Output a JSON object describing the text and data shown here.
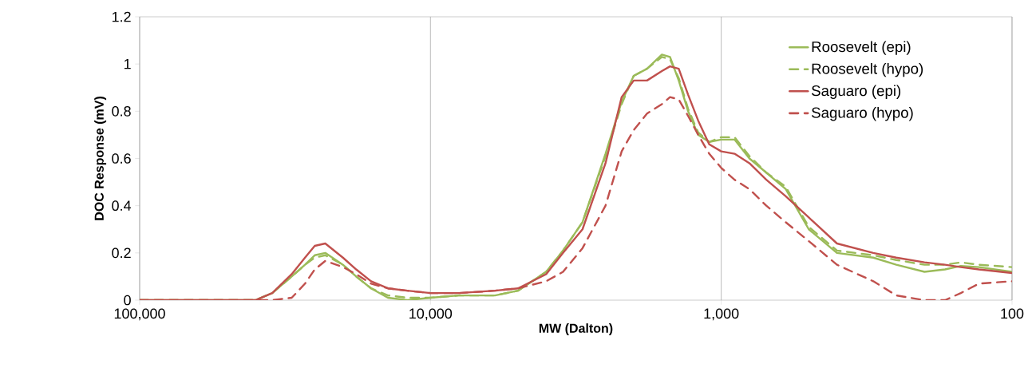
{
  "chart_data": {
    "type": "line",
    "xlabel": "MW (Dalton)",
    "ylabel": "DOC Response (mV)",
    "log": "x",
    "x": [
      100000,
      50000,
      40000,
      35000,
      30000,
      27000,
      25000,
      23000,
      20000,
      18000,
      16000,
      14000,
      12000,
      10000,
      8000,
      6000,
      5000,
      4000,
      3500,
      3000,
      2500,
      2200,
      2000,
      1800,
      1600,
      1500,
      1400,
      1300,
      1200,
      1100,
      1000,
      900,
      800,
      700,
      600,
      500,
      400,
      300,
      250,
      200,
      170,
      150,
      130,
      100
    ],
    "series": [
      {
        "name": "Roosevelt (epi)",
        "color": "#9bbb59",
        "line_style": "solid",
        "values": [
          0,
          0,
          0,
          0.03,
          0.1,
          0.15,
          0.19,
          0.2,
          0.15,
          0.1,
          0.05,
          0.01,
          0,
          0.01,
          0.02,
          0.02,
          0.04,
          0.12,
          0.21,
          0.33,
          0.62,
          0.84,
          0.95,
          0.98,
          1.04,
          1.03,
          0.93,
          0.8,
          0.7,
          0.67,
          0.68,
          0.68,
          0.6,
          0.54,
          0.47,
          0.3,
          0.2,
          0.18,
          0.15,
          0.12,
          0.13,
          0.145,
          0.14,
          0.12
        ]
      },
      {
        "name": "Roosevelt (hypo)",
        "color": "#9bbb59",
        "line_style": "dashed",
        "values": [
          0,
          0,
          0,
          0.03,
          0.1,
          0.15,
          0.18,
          0.19,
          0.15,
          0.1,
          0.05,
          0.02,
          0.01,
          0.01,
          0.02,
          0.02,
          0.04,
          0.12,
          0.21,
          0.33,
          0.61,
          0.83,
          0.95,
          0.98,
          1.03,
          1.02,
          0.94,
          0.81,
          0.71,
          0.67,
          0.69,
          0.69,
          0.61,
          0.54,
          0.48,
          0.31,
          0.21,
          0.19,
          0.17,
          0.15,
          0.15,
          0.16,
          0.15,
          0.14
        ]
      },
      {
        "name": "Saguaro (epi)",
        "color": "#c0504d",
        "line_style": "solid",
        "values": [
          0,
          0,
          0,
          0.03,
          0.11,
          0.18,
          0.23,
          0.24,
          0.18,
          0.13,
          0.08,
          0.05,
          0.04,
          0.03,
          0.03,
          0.04,
          0.05,
          0.11,
          0.2,
          0.3,
          0.58,
          0.86,
          0.93,
          0.93,
          0.97,
          0.99,
          0.98,
          0.87,
          0.76,
          0.66,
          0.63,
          0.62,
          0.58,
          0.51,
          0.44,
          0.35,
          0.24,
          0.2,
          0.18,
          0.16,
          0.15,
          0.14,
          0.13,
          0.115
        ]
      },
      {
        "name": "Saguaro (hypo)",
        "color": "#c0504d",
        "line_style": "dashed",
        "values": [
          0,
          0,
          0,
          0,
          0.01,
          0.07,
          0.13,
          0.166,
          0.14,
          0.11,
          0.07,
          0.05,
          0.04,
          0.03,
          0.03,
          0.04,
          0.05,
          0.08,
          0.12,
          0.22,
          0.4,
          0.63,
          0.72,
          0.79,
          0.83,
          0.86,
          0.85,
          0.78,
          0.7,
          0.62,
          0.56,
          0.51,
          0.47,
          0.4,
          0.33,
          0.25,
          0.15,
          0.08,
          0.02,
          0,
          0,
          0.03,
          0.07,
          0.08
        ]
      }
    ],
    "xlim": [
      100000,
      100
    ],
    "xticks": [
      {
        "value": 100000,
        "label": "100,000"
      },
      {
        "value": 10000,
        "label": "10,000"
      },
      {
        "value": 1000,
        "label": "1,000"
      },
      {
        "value": 100,
        "label": "100"
      }
    ],
    "ylim": [
      0,
      1.2
    ],
    "yticks": [
      0,
      0.2,
      0.4,
      0.6,
      0.8,
      1,
      1.2
    ],
    "grid": "x",
    "legend": "top right"
  }
}
